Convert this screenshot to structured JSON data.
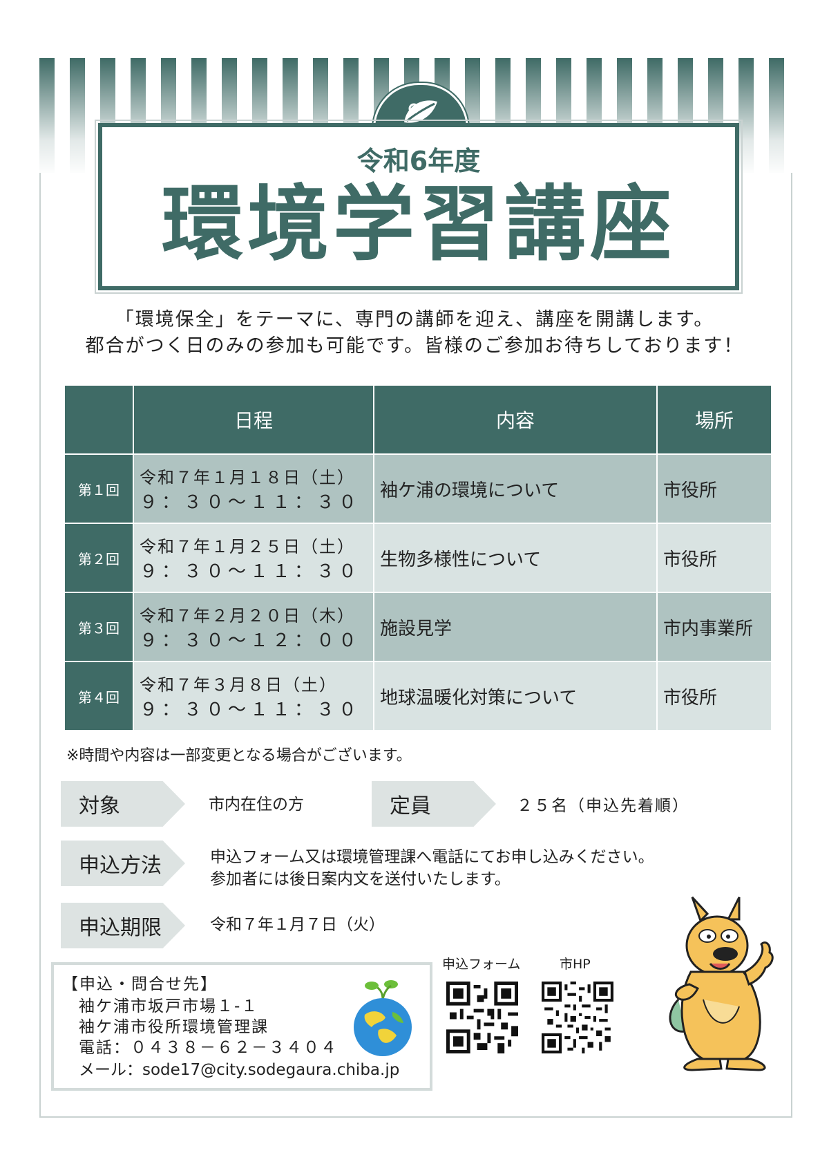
{
  "header": {
    "subtitle": "令和6年度",
    "title": "環境学習講座"
  },
  "intro": {
    "line1": "「環境保全」をテーマに、専門の講師を迎え、講座を開講します。",
    "line2": "都合がつく日のみの参加も可能です。皆様のご参加お待ちしております！"
  },
  "schedule": {
    "headers": [
      "日程",
      "内容",
      "場所"
    ],
    "rows": [
      {
        "no": "第１回",
        "date": "令和７年１月１８日（土）",
        "time": "９：３０～１１：３０",
        "content": "袖ケ浦の環境について",
        "place": "市役所"
      },
      {
        "no": "第２回",
        "date": "令和７年１月２５日（土）",
        "time": "９：３０～１１：３０",
        "content": "生物多様性について",
        "place": "市役所"
      },
      {
        "no": "第３回",
        "date": "令和７年２月２０日（木）",
        "time": "９：３０～１２：００",
        "content": "施設見学",
        "place": "市内事業所"
      },
      {
        "no": "第４回",
        "date": "令和７年３月８日（土）",
        "time": "９：３０～１１：３０",
        "content": "地球温暖化対策について",
        "place": "市役所"
      }
    ],
    "note": "※時間や内容は一部変更となる場合がございます。"
  },
  "details": {
    "target_label": "対象",
    "target_value": "市内在住の方",
    "capacity_label": "定員",
    "capacity_value": "２５名（申込先着順）",
    "method_label": "申込方法",
    "method_line1": "申込フォーム又は環境管理課へ電話にてお申し込みください。",
    "method_line2": "参加者には後日案内文を送付いたします。",
    "deadline_label": "申込期限",
    "deadline_value": "令和７年１月７日（火）"
  },
  "contact": {
    "heading": "【申込・問合せ先】",
    "address": "袖ケ浦市坂戸市場１-１",
    "office": "袖ケ浦市役所環境管理課",
    "phone": "電話：０４３８－６２－３４０４",
    "email": "メール：sode17@city.sodegaura.chiba.jp"
  },
  "qr": {
    "form_label": "申込フォーム",
    "hp_label": "市HP"
  },
  "colors": {
    "accent": "#3f6b66",
    "row_dark": "#afc3c1",
    "row_light": "#d9e3e2",
    "tag_bg": "#dde3e2"
  },
  "icons": [
    "leaf-emblem-icon",
    "globe-sprout-icon",
    "qr-code-icon",
    "kangaroo-mascot-icon"
  ]
}
